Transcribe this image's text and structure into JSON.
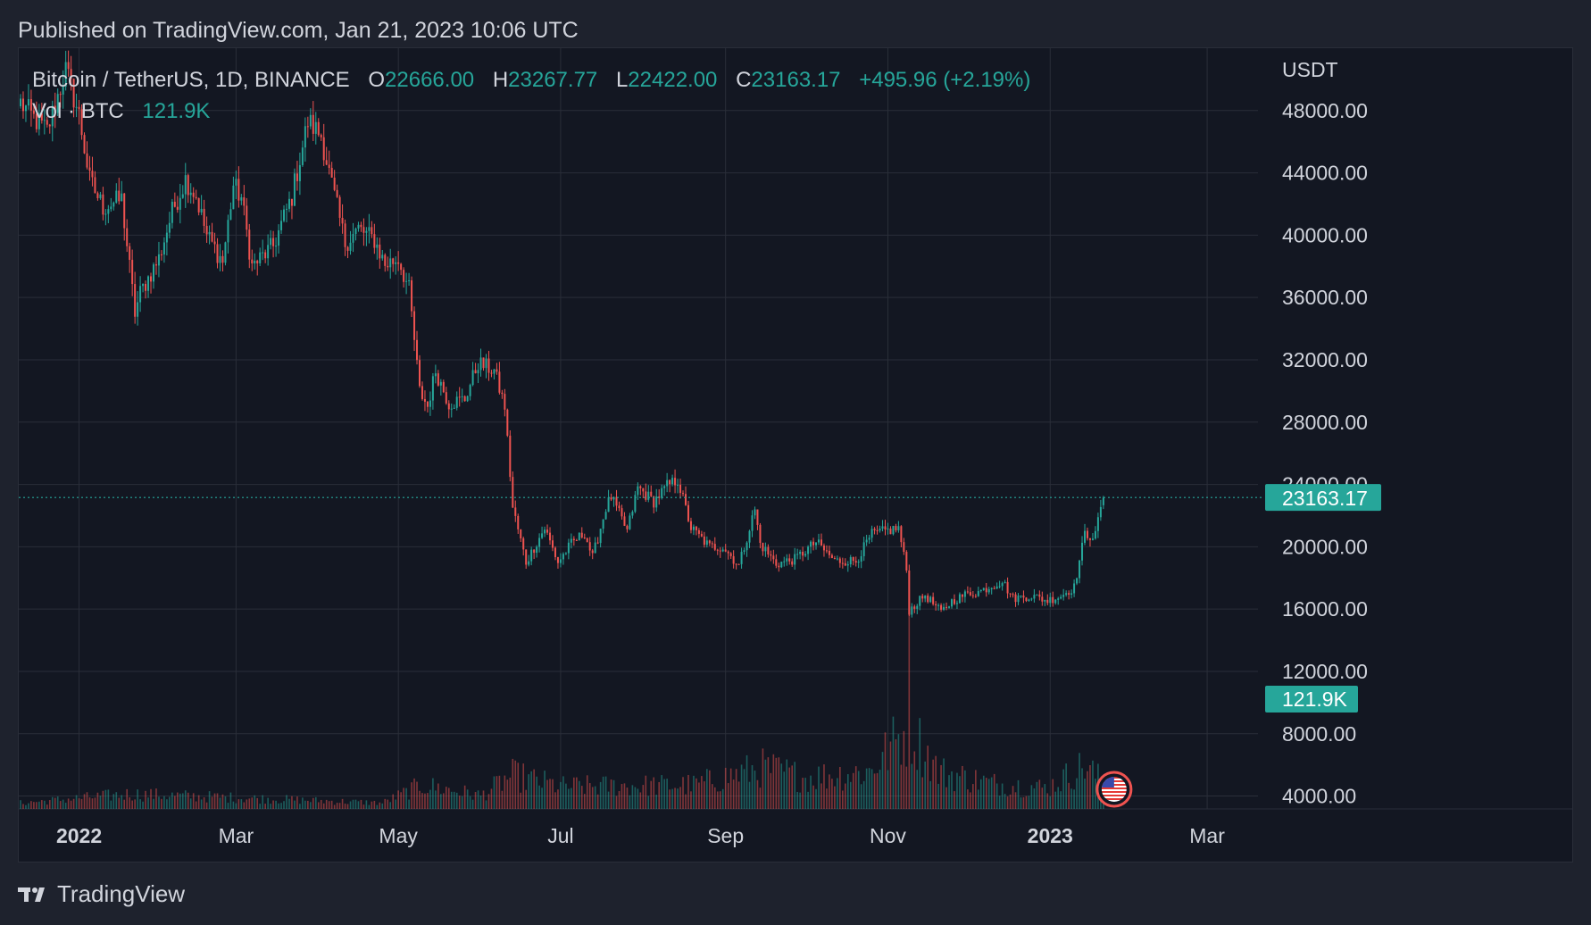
{
  "header": {
    "published": "Published on TradingView.com, Jan 21, 2023 10:06 UTC"
  },
  "legend": {
    "symbol": "Bitcoin / TetherUS, 1D, BINANCE",
    "o_label": "O",
    "o_value": "22666.00",
    "h_label": "H",
    "h_value": "23267.77",
    "l_label": "L",
    "l_value": "22422.00",
    "c_label": "C",
    "c_value": "23163.17",
    "change": "+495.96 (+2.19%)",
    "vol_label": "Vol · BTC",
    "vol_value": "121.9K"
  },
  "footer": {
    "brand": "TradingView"
  },
  "colors": {
    "background": "#131722",
    "up": "#26a69a",
    "down": "#ef5350",
    "grid": "#2a2e39",
    "text": "#d1d4dc"
  },
  "icons": {
    "flag": "us-flag-icon",
    "logo": "tradingview-logo-icon"
  },
  "chart_data": {
    "type": "candlestick",
    "currency": "USDT",
    "y_ticks": [
      "48000.00",
      "44000.00",
      "40000.00",
      "36000.00",
      "32000.00",
      "28000.00",
      "24000.00",
      "20000.00",
      "16000.00",
      "12000.00",
      "8000.00",
      "4000.00"
    ],
    "ylim": [
      3000,
      52000
    ],
    "x_ticks": [
      {
        "label": "2022",
        "bold": true,
        "day": "2022-01-01"
      },
      {
        "label": "Mar",
        "bold": false,
        "day": "2022-03-01"
      },
      {
        "label": "May",
        "bold": false,
        "day": "2022-05-01"
      },
      {
        "label": "Jul",
        "bold": false,
        "day": "2022-07-01"
      },
      {
        "label": "Sep",
        "bold": false,
        "day": "2022-09-01"
      },
      {
        "label": "Nov",
        "bold": false,
        "day": "2022-11-01"
      },
      {
        "label": "2023",
        "bold": true,
        "day": "2023-01-01"
      },
      {
        "label": "Mar",
        "bold": false,
        "day": "2023-03-01"
      }
    ],
    "first_day": "2021-12-10",
    "last_price": 23163.17,
    "last_price_label": "23163.17",
    "last_volume_label": "121.9K",
    "close_path": [
      [
        "2021-12-10",
        48500
      ],
      [
        "2021-12-15",
        47500
      ],
      [
        "2021-12-20",
        46700
      ],
      [
        "2021-12-27",
        50600
      ],
      [
        "2022-01-01",
        47700
      ],
      [
        "2022-01-05",
        43500
      ],
      [
        "2022-01-10",
        41800
      ],
      [
        "2022-01-17",
        42300
      ],
      [
        "2022-01-22",
        35000
      ],
      [
        "2022-01-24",
        36300
      ],
      [
        "2022-01-31",
        38500
      ],
      [
        "2022-02-05",
        41500
      ],
      [
        "2022-02-10",
        43600
      ],
      [
        "2022-02-14",
        42500
      ],
      [
        "2022-02-18",
        40000
      ],
      [
        "2022-02-24",
        38300
      ],
      [
        "2022-02-28",
        43200
      ],
      [
        "2022-03-03",
        42400
      ],
      [
        "2022-03-07",
        38000
      ],
      [
        "2022-03-15",
        39300
      ],
      [
        "2022-03-22",
        42500
      ],
      [
        "2022-03-28",
        47300
      ],
      [
        "2022-04-02",
        46400
      ],
      [
        "2022-04-06",
        43200
      ],
      [
        "2022-04-11",
        39500
      ],
      [
        "2022-04-16",
        40400
      ],
      [
        "2022-04-22",
        39700
      ],
      [
        "2022-04-26",
        38100
      ],
      [
        "2022-05-01",
        38500
      ],
      [
        "2022-05-05",
        36500
      ],
      [
        "2022-05-09",
        30000
      ],
      [
        "2022-05-12",
        29000
      ],
      [
        "2022-05-15",
        31300
      ],
      [
        "2022-05-20",
        29200
      ],
      [
        "2022-05-26",
        29500
      ],
      [
        "2022-05-31",
        31800
      ],
      [
        "2022-06-06",
        31300
      ],
      [
        "2022-06-10",
        29000
      ],
      [
        "2022-06-13",
        22500
      ],
      [
        "2022-06-18",
        19000
      ],
      [
        "2022-06-25",
        21200
      ],
      [
        "2022-06-30",
        19000
      ],
      [
        "2022-07-05",
        20200
      ],
      [
        "2022-07-10",
        20900
      ],
      [
        "2022-07-13",
        19300
      ],
      [
        "2022-07-18",
        22500
      ],
      [
        "2022-07-20",
        23200
      ],
      [
        "2022-07-26",
        21000
      ],
      [
        "2022-07-30",
        23800
      ],
      [
        "2022-08-05",
        22900
      ],
      [
        "2022-08-10",
        23900
      ],
      [
        "2022-08-14",
        24300
      ],
      [
        "2022-08-19",
        21200
      ],
      [
        "2022-08-26",
        20000
      ],
      [
        "2022-08-31",
        20000
      ],
      [
        "2022-09-06",
        18800
      ],
      [
        "2022-09-12",
        22400
      ],
      [
        "2022-09-14",
        20200
      ],
      [
        "2022-09-20",
        18900
      ],
      [
        "2022-09-27",
        19200
      ],
      [
        "2022-10-05",
        20300
      ],
      [
        "2022-10-12",
        19100
      ],
      [
        "2022-10-20",
        19100
      ],
      [
        "2022-10-26",
        20800
      ],
      [
        "2022-11-05",
        21200
      ],
      [
        "2022-11-08",
        18500
      ],
      [
        "2022-11-09",
        15900
      ],
      [
        "2022-11-15",
        16900
      ],
      [
        "2022-11-21",
        15800
      ],
      [
        "2022-11-25",
        16500
      ],
      [
        "2022-12-01",
        17000
      ],
      [
        "2022-12-05",
        17100
      ],
      [
        "2022-12-14",
        17800
      ],
      [
        "2022-12-18",
        16700
      ],
      [
        "2022-12-25",
        16850
      ],
      [
        "2022-12-31",
        16550
      ],
      [
        "2023-01-05",
        16850
      ],
      [
        "2023-01-10",
        17400
      ],
      [
        "2023-01-14",
        20800
      ],
      [
        "2023-01-18",
        20700
      ],
      [
        "2023-01-20",
        22666
      ],
      [
        "2023-01-21",
        23163.17
      ]
    ],
    "volume_profile": [
      [
        "2021-12-10",
        0.8
      ],
      [
        "2022-01-20",
        2.0
      ],
      [
        "2022-03-01",
        1.5
      ],
      [
        "2022-04-25",
        0.8
      ],
      [
        "2022-05-10",
        3.2
      ],
      [
        "2022-06-01",
        1.8
      ],
      [
        "2022-06-13",
        4.5
      ],
      [
        "2022-07-01",
        3.0
      ],
      [
        "2022-08-20",
        3.2
      ],
      [
        "2022-09-15",
        5.5
      ],
      [
        "2022-10-01",
        4.2
      ],
      [
        "2022-10-25",
        5.0
      ],
      [
        "2022-11-09",
        11.0
      ],
      [
        "2022-11-20",
        5.0
      ],
      [
        "2022-12-10",
        3.4
      ],
      [
        "2022-12-31",
        2.8
      ],
      [
        "2023-01-14",
        5.8
      ],
      [
        "2023-01-21",
        3.5
      ]
    ]
  }
}
